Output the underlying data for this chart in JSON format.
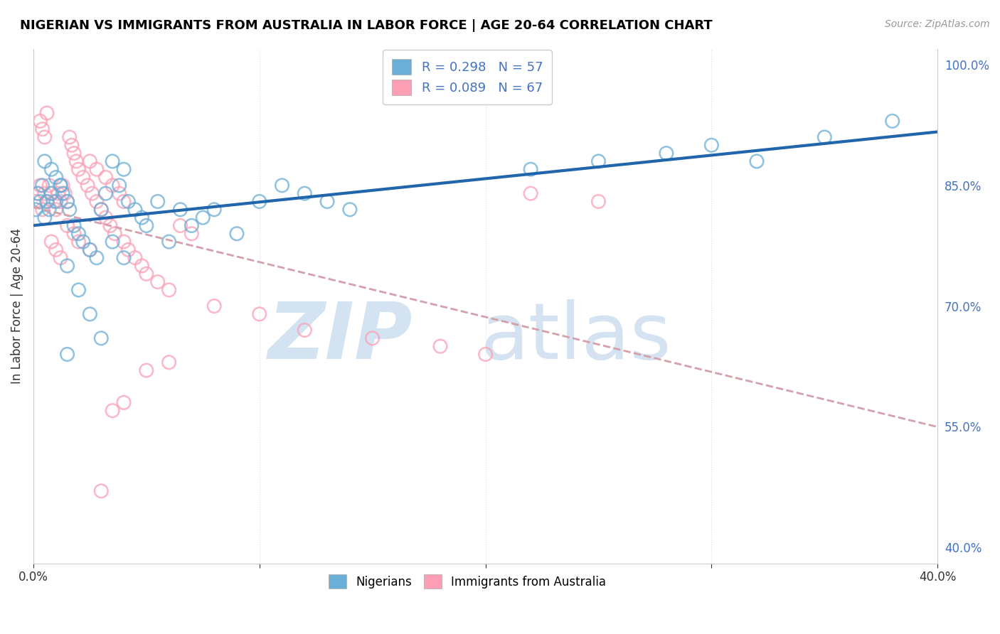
{
  "title": "NIGERIAN VS IMMIGRANTS FROM AUSTRALIA IN LABOR FORCE | AGE 20-64 CORRELATION CHART",
  "source": "Source: ZipAtlas.com",
  "ylabel": "In Labor Force | Age 20-64",
  "xlim": [
    0.0,
    0.4
  ],
  "ylim": [
    0.38,
    1.02
  ],
  "x_tick_positions": [
    0.0,
    0.1,
    0.2,
    0.3,
    0.4
  ],
  "x_tick_labels": [
    "0.0%",
    "",
    "",
    "",
    "40.0%"
  ],
  "y_tick_positions_right": [
    0.4,
    0.55,
    0.7,
    0.85,
    1.0
  ],
  "y_tick_labels_right": [
    "40.0%",
    "55.0%",
    "70.0%",
    "85.0%",
    "100.0%"
  ],
  "legend_R1": "R = 0.298",
  "legend_N1": "N = 57",
  "legend_R2": "R = 0.089",
  "legend_N2": "N = 67",
  "blue_color": "#6baed6",
  "pink_color": "#fc9fb5",
  "blue_line_color": "#2166ac",
  "pink_line_color": "#d4a0aa",
  "grid_color": "#dddddd",
  "blue_scatter_x": [
    0.001,
    0.002,
    0.003,
    0.004,
    0.005,
    0.006,
    0.007,
    0.008,
    0.01,
    0.012,
    0.013,
    0.015,
    0.016,
    0.018,
    0.02,
    0.022,
    0.025,
    0.028,
    0.03,
    0.032,
    0.035,
    0.038,
    0.04,
    0.042,
    0.045,
    0.048,
    0.05,
    0.055,
    0.06,
    0.065,
    0.07,
    0.075,
    0.08,
    0.09,
    0.1,
    0.11,
    0.12,
    0.13,
    0.14,
    0.015,
    0.02,
    0.025,
    0.03,
    0.035,
    0.04,
    0.005,
    0.008,
    0.01,
    0.012,
    0.015,
    0.22,
    0.25,
    0.28,
    0.3,
    0.32,
    0.35,
    0.38
  ],
  "blue_scatter_y": [
    0.82,
    0.84,
    0.83,
    0.85,
    0.81,
    0.83,
    0.82,
    0.84,
    0.83,
    0.85,
    0.84,
    0.83,
    0.82,
    0.8,
    0.79,
    0.78,
    0.77,
    0.76,
    0.82,
    0.84,
    0.88,
    0.85,
    0.87,
    0.83,
    0.82,
    0.81,
    0.8,
    0.83,
    0.78,
    0.82,
    0.8,
    0.81,
    0.82,
    0.79,
    0.83,
    0.85,
    0.84,
    0.83,
    0.82,
    0.75,
    0.72,
    0.69,
    0.66,
    0.78,
    0.76,
    0.88,
    0.87,
    0.86,
    0.85,
    0.64,
    0.87,
    0.88,
    0.89,
    0.9,
    0.88,
    0.91,
    0.93
  ],
  "pink_scatter_x": [
    0.001,
    0.002,
    0.003,
    0.004,
    0.005,
    0.006,
    0.007,
    0.008,
    0.009,
    0.01,
    0.011,
    0.012,
    0.013,
    0.014,
    0.015,
    0.016,
    0.017,
    0.018,
    0.019,
    0.02,
    0.022,
    0.024,
    0.026,
    0.028,
    0.03,
    0.032,
    0.034,
    0.036,
    0.04,
    0.042,
    0.045,
    0.048,
    0.05,
    0.055,
    0.06,
    0.065,
    0.07,
    0.008,
    0.01,
    0.012,
    0.015,
    0.018,
    0.02,
    0.025,
    0.003,
    0.004,
    0.005,
    0.006,
    0.025,
    0.028,
    0.032,
    0.035,
    0.038,
    0.04,
    0.22,
    0.25,
    0.18,
    0.2,
    0.15,
    0.12,
    0.1,
    0.08,
    0.06,
    0.05,
    0.04,
    0.035,
    0.03
  ],
  "pink_scatter_y": [
    0.83,
    0.84,
    0.85,
    0.82,
    0.84,
    0.83,
    0.85,
    0.84,
    0.83,
    0.82,
    0.84,
    0.83,
    0.85,
    0.84,
    0.83,
    0.91,
    0.9,
    0.89,
    0.88,
    0.87,
    0.86,
    0.85,
    0.84,
    0.83,
    0.82,
    0.81,
    0.8,
    0.79,
    0.78,
    0.77,
    0.76,
    0.75,
    0.74,
    0.73,
    0.72,
    0.8,
    0.79,
    0.78,
    0.77,
    0.76,
    0.8,
    0.79,
    0.78,
    0.77,
    0.93,
    0.92,
    0.91,
    0.94,
    0.88,
    0.87,
    0.86,
    0.85,
    0.84,
    0.83,
    0.84,
    0.83,
    0.65,
    0.64,
    0.66,
    0.67,
    0.69,
    0.7,
    0.63,
    0.62,
    0.58,
    0.57,
    0.47
  ]
}
